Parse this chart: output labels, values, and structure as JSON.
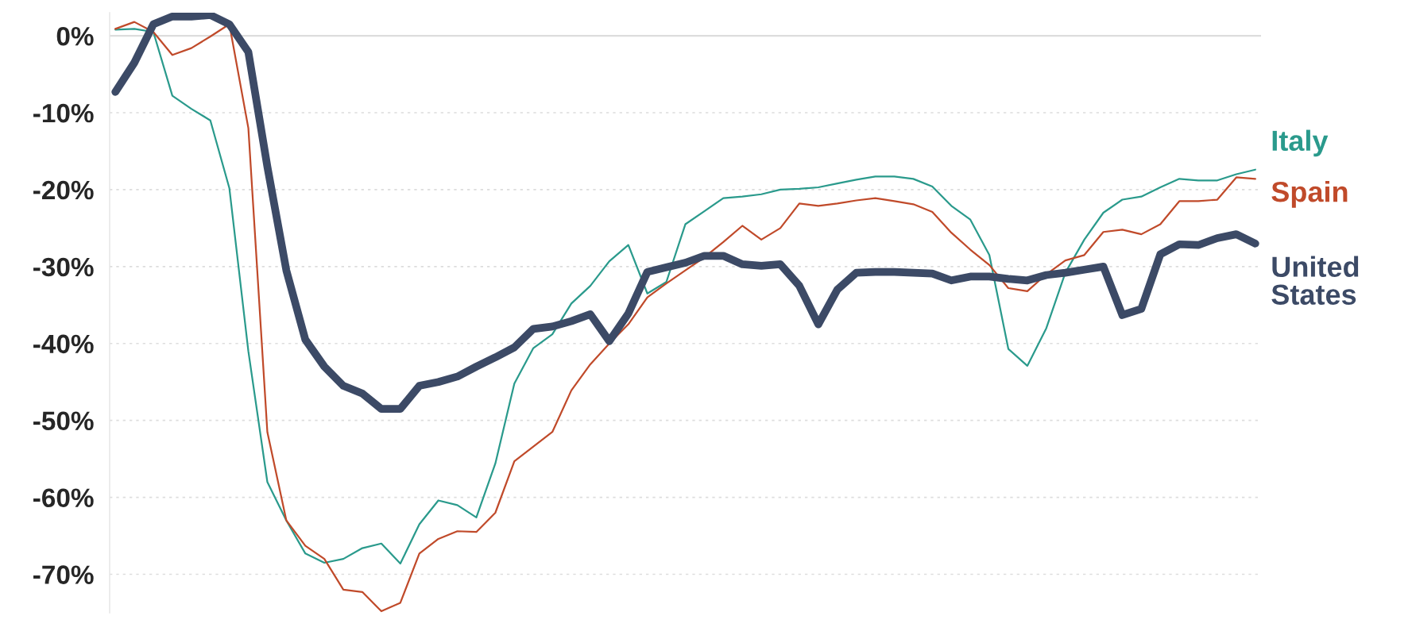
{
  "chart_data": {
    "type": "line",
    "categories": [
      null,
      null,
      null,
      null,
      null,
      null,
      null,
      null,
      null,
      null,
      null,
      null,
      null,
      null,
      null,
      null,
      null,
      null,
      null,
      null,
      null,
      null,
      null,
      null,
      null,
      null,
      null,
      null,
      null,
      null,
      null,
      null,
      null,
      null,
      null,
      null,
      null,
      null,
      null,
      null,
      null,
      null,
      null,
      null,
      null,
      null,
      null,
      null,
      null,
      null,
      null,
      null,
      null,
      null,
      null,
      null,
      null,
      null,
      null,
      null,
      null
    ],
    "series": [
      {
        "name": "Italy",
        "color": "#2a9a8c",
        "values": [
          0.8,
          0.9,
          0.5,
          -7.8,
          -9.5,
          -11,
          -19.8,
          -41,
          -58,
          -63,
          -67.3,
          -68.5,
          -68,
          -66.6,
          -66,
          -68.6,
          -63.5,
          -60.4,
          -61,
          -62.6,
          -55.6,
          -45.2,
          -40.6,
          -38.8,
          -34.8,
          -32.5,
          -29.3,
          -27.2,
          -33.5,
          -32,
          -24.5,
          -22.8,
          -21.1,
          -20.9,
          -20.6,
          -20,
          -19.9,
          -19.7,
          -19.2,
          -18.7,
          -18.3,
          -18.3,
          -18.6,
          -19.6,
          -22.1,
          -23.9,
          -28.5,
          -40.7,
          -42.9,
          -38,
          -30.8,
          -26.5,
          -23,
          -21.3,
          -20.9,
          -19.7,
          -18.6,
          -18.8,
          -18.8,
          -18,
          -17.4
        ]
      },
      {
        "name": "Spain",
        "color": "#c04a2a",
        "values": [
          0.9,
          1.8,
          0.5,
          -2.5,
          -1.6,
          -0.1,
          1.5,
          -12,
          -51.5,
          -63,
          -66.3,
          -68,
          -72,
          -72.3,
          -74.8,
          -73.7,
          -67.3,
          -65.4,
          -64.4,
          -64.5,
          -62,
          -55.3,
          -53.4,
          -51.5,
          -46.1,
          -42.7,
          -40,
          -37.5,
          -34,
          -32.2,
          -30.5,
          -28.8,
          -26.8,
          -24.7,
          -26.5,
          -25,
          -21.8,
          -22.1,
          -21.8,
          -21.4,
          -21.1,
          -21.5,
          -21.9,
          -22.9,
          -25.6,
          -27.8,
          -29.8,
          -32.8,
          -33.2,
          -31,
          -29.2,
          -28.5,
          -25.5,
          -25.2,
          -25.8,
          -24.5,
          -21.5,
          -21.5,
          -21.3,
          -18.4,
          -18.6
        ]
      },
      {
        "name": "United States",
        "color": "#3c4a66",
        "values": [
          -7.3,
          -3.5,
          1.5,
          2.5,
          2.5,
          2.7,
          1.5,
          -2.1,
          -17,
          -30.5,
          -39.5,
          -43,
          -45.5,
          -46.5,
          -48.5,
          -48.5,
          -45.5,
          -45,
          -44.3,
          -43,
          -41.8,
          -40.5,
          -38.1,
          -37.8,
          -37.1,
          -36.2,
          -39.7,
          -36.1,
          -30.7,
          -30.1,
          -29.5,
          -28.6,
          -28.6,
          -29.7,
          -29.9,
          -29.7,
          -32.5,
          -37.5,
          -33,
          -30.8,
          -30.7,
          -30.7,
          -30.8,
          -30.9,
          -31.8,
          -31.3,
          -31.3,
          -31.6,
          -31.8,
          -31.1,
          -30.8,
          -30.4,
          -30,
          -36.3,
          -35.5,
          -28.4,
          -27.1,
          -27.2,
          -26.3,
          -25.8,
          -27
        ]
      }
    ],
    "ylim": [
      -75,
      3
    ],
    "yticks": [
      {
        "value": 0,
        "label": "0%"
      },
      {
        "value": -10,
        "label": "-10%"
      },
      {
        "value": -20,
        "label": "-20%"
      },
      {
        "value": -30,
        "label": "-30%"
      },
      {
        "value": -40,
        "label": "-40%"
      },
      {
        "value": -50,
        "label": "-50%"
      },
      {
        "value": -60,
        "label": "-60%"
      },
      {
        "value": -70,
        "label": "-70%"
      }
    ],
    "grid": "y",
    "tick_labels": "y",
    "line_style": "solid"
  }
}
